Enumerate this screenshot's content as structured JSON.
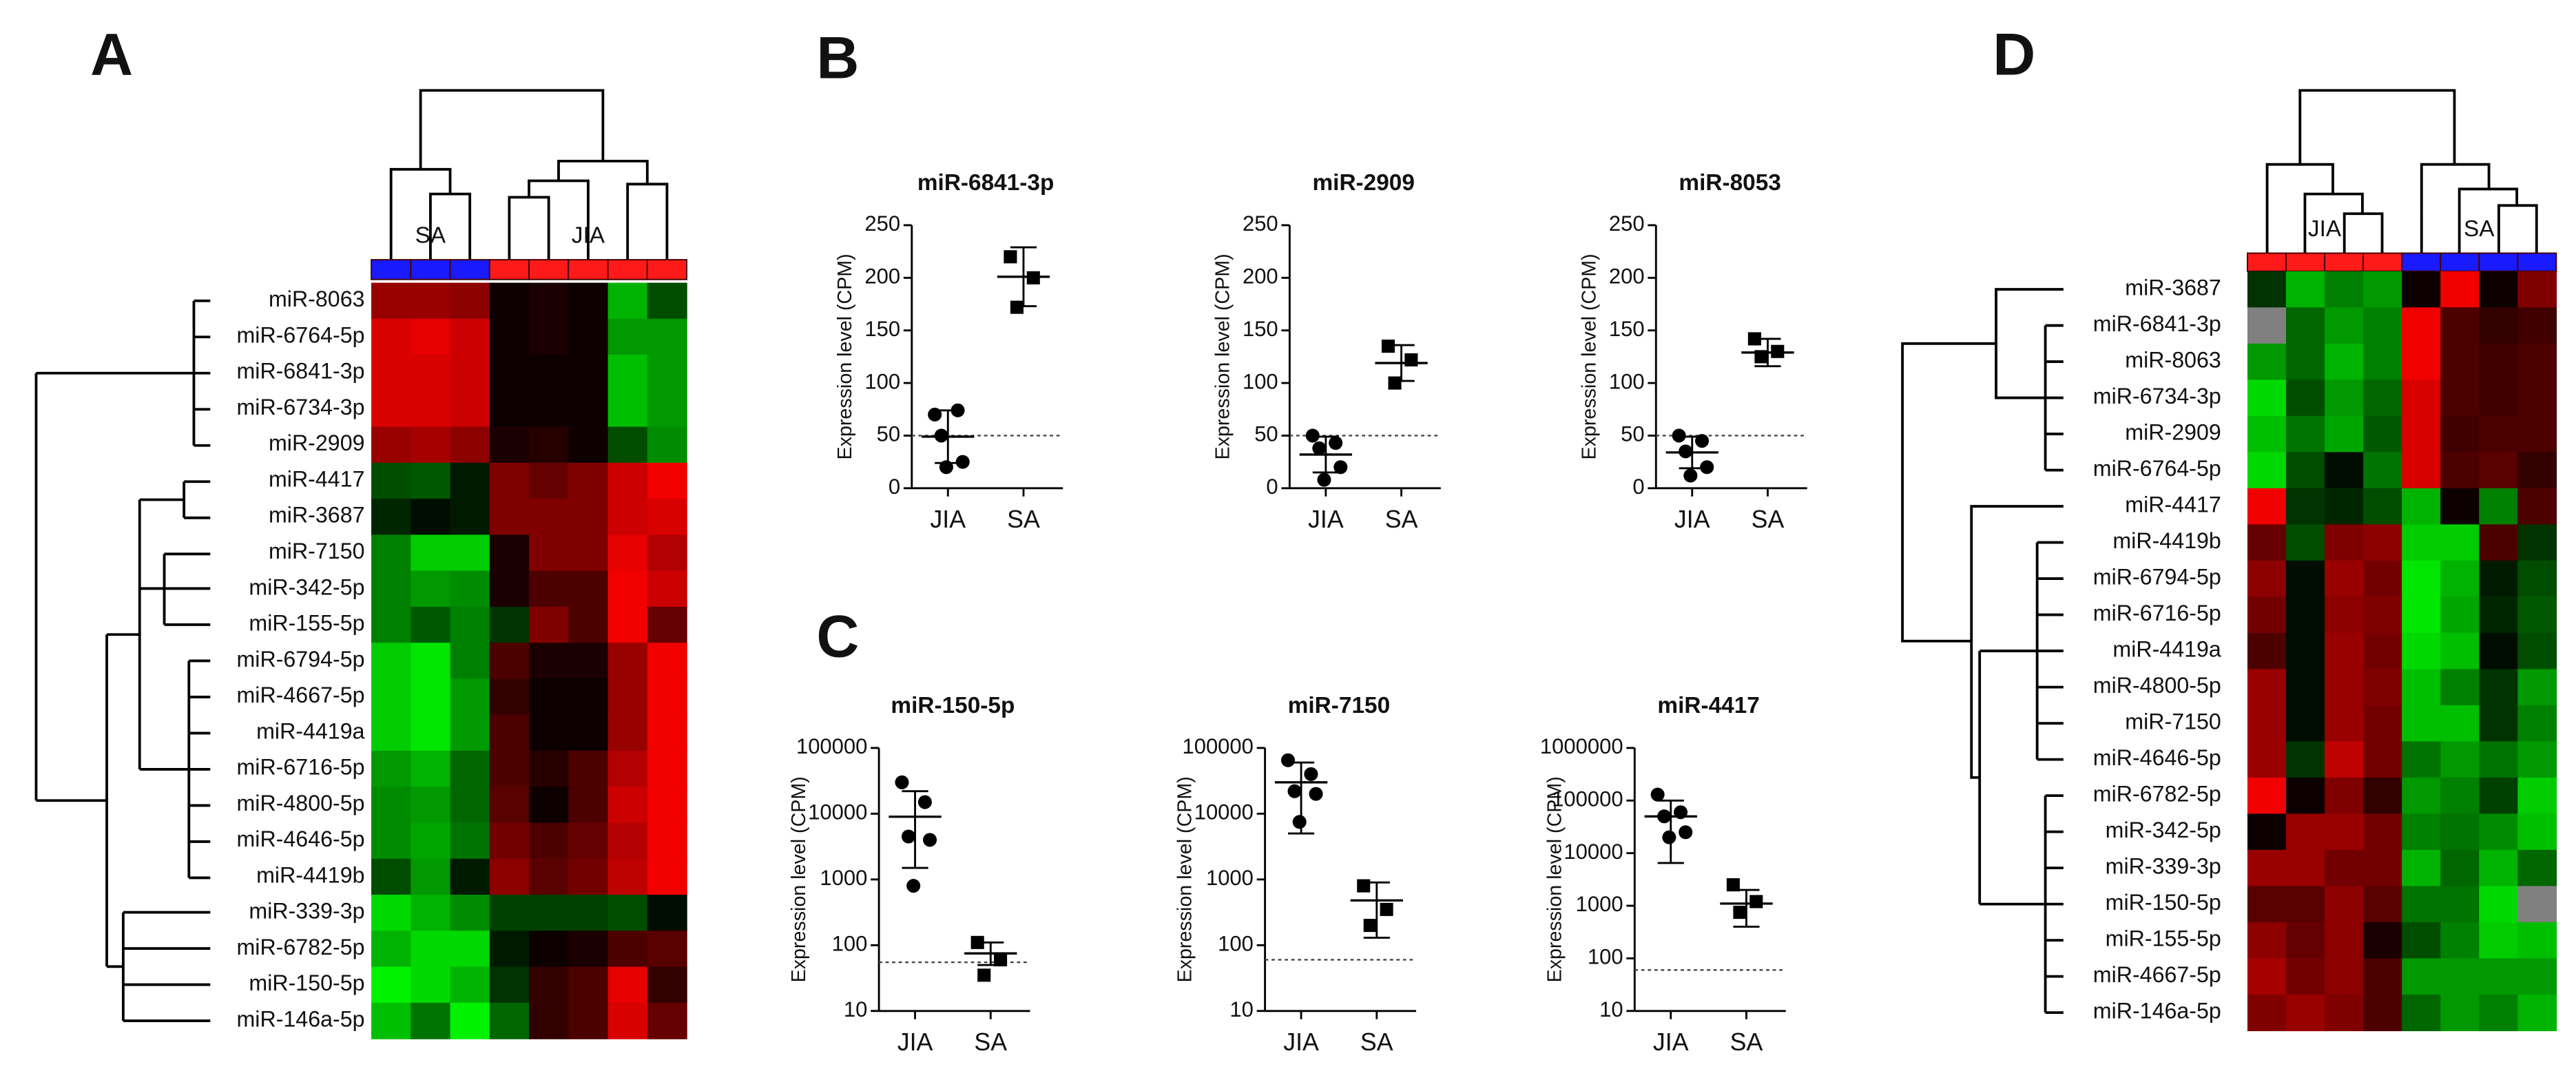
{
  "panel_labels": [
    "A",
    "B",
    "C",
    "D"
  ],
  "chart_data": [
    {
      "type": "heatmap",
      "rows": [
        "miR-8063",
        "miR-6764-5p",
        "miR-6841-3p",
        "miR-6734-3p",
        "miR-2909",
        "miR-4417",
        "miR-3687",
        "miR-7150",
        "miR-342-5p",
        "miR-155-5p",
        "miR-6794-5p",
        "miR-4667-5p",
        "miR-4419a",
        "miR-6716-5p",
        "miR-4800-5p",
        "miR-4646-5p",
        "miR-4419b",
        "miR-339-3p",
        "miR-6782-5p",
        "miR-150-5p",
        "miR-146a-5p"
      ],
      "groups": [
        {
          "name": "SA",
          "color": "#1a1aff",
          "columns": 3
        },
        {
          "name": "JIA",
          "color": "#ff1a1a",
          "columns": 5
        }
      ],
      "zlim": [
        -1,
        1
      ],
      "low_color": "#00ff00",
      "mid_color": "#000000",
      "high_color": "#ff0000",
      "missing_color": "#808080",
      "values": [
        [
          0.6,
          0.6,
          0.55,
          0.05,
          0.1,
          0.05,
          -0.7,
          -0.3
        ],
        [
          0.85,
          0.9,
          0.8,
          0.05,
          0.1,
          0.05,
          -0.6,
          -0.6
        ],
        [
          0.85,
          0.85,
          0.8,
          0.05,
          0.05,
          0.05,
          -0.75,
          -0.6
        ],
        [
          0.85,
          0.85,
          0.8,
          0.05,
          0.05,
          0.05,
          -0.75,
          -0.6
        ],
        [
          0.6,
          0.65,
          0.55,
          0.1,
          0.15,
          0.05,
          -0.3,
          -0.55
        ],
        [
          -0.3,
          -0.35,
          -0.1,
          0.5,
          0.4,
          0.5,
          0.8,
          0.95
        ],
        [
          -0.15,
          -0.05,
          -0.1,
          0.5,
          0.5,
          0.5,
          0.8,
          0.85
        ],
        [
          -0.5,
          -0.8,
          -0.8,
          0.1,
          0.5,
          0.5,
          0.9,
          0.7
        ],
        [
          -0.5,
          -0.6,
          -0.55,
          0.1,
          0.3,
          0.3,
          0.95,
          0.8
        ],
        [
          -0.5,
          -0.35,
          -0.5,
          -0.2,
          0.5,
          0.3,
          0.95,
          0.4
        ],
        [
          -0.8,
          -0.9,
          -0.5,
          0.3,
          0.1,
          0.1,
          0.6,
          0.95
        ],
        [
          -0.8,
          -0.9,
          -0.6,
          0.2,
          0.05,
          0.05,
          0.6,
          0.95
        ],
        [
          -0.8,
          -0.9,
          -0.6,
          0.3,
          0.05,
          0.05,
          0.6,
          0.95
        ],
        [
          -0.6,
          -0.7,
          -0.4,
          0.3,
          0.15,
          0.3,
          0.7,
          0.95
        ],
        [
          -0.55,
          -0.6,
          -0.4,
          0.35,
          0.05,
          0.3,
          0.8,
          0.95
        ],
        [
          -0.55,
          -0.65,
          -0.45,
          0.45,
          0.3,
          0.4,
          0.7,
          0.95
        ],
        [
          -0.3,
          -0.6,
          -0.1,
          0.55,
          0.35,
          0.45,
          0.75,
          0.95
        ],
        [
          -0.85,
          -0.7,
          -0.55,
          -0.25,
          -0.25,
          -0.25,
          -0.3,
          -0.05
        ],
        [
          -0.7,
          -0.85,
          -0.85,
          -0.1,
          0.05,
          0.1,
          0.3,
          0.35
        ],
        [
          -0.95,
          -0.85,
          -0.7,
          -0.2,
          0.2,
          0.3,
          0.9,
          0.2
        ],
        [
          -0.75,
          -0.45,
          -0.95,
          -0.4,
          0.2,
          0.3,
          0.85,
          0.4
        ]
      ]
    },
    {
      "type": "dot",
      "title": "miR-6841-3p",
      "ylabel": "Expression level (CPM)",
      "categories": [
        "JIA",
        "SA"
      ],
      "markers": [
        "circle",
        "square"
      ],
      "color": "#000000",
      "log": false,
      "ylim": [
        0,
        250
      ],
      "yticks": [
        0,
        50,
        100,
        150,
        200,
        250
      ],
      "threshold": 50,
      "values": [
        [
          70,
          74,
          50,
          25,
          20
        ],
        [
          220,
          200,
          172
        ]
      ],
      "mean": [
        49,
        201
      ],
      "error_bars": [
        [
          24,
          74
        ],
        [
          173,
          229
        ]
      ]
    },
    {
      "type": "dot",
      "title": "miR-2909",
      "ylabel": "Expression level (CPM)",
      "categories": [
        "JIA",
        "SA"
      ],
      "markers": [
        "circle",
        "square"
      ],
      "color": "#000000",
      "log": false,
      "ylim": [
        0,
        250
      ],
      "yticks": [
        0,
        50,
        100,
        150,
        200,
        250
      ],
      "threshold": 50,
      "values": [
        [
          50,
          43,
          38,
          20,
          8
        ],
        [
          135,
          122,
          100
        ]
      ],
      "mean": [
        32,
        119
      ],
      "error_bars": [
        [
          15,
          49
        ],
        [
          102,
          136
        ]
      ]
    },
    {
      "type": "dot",
      "title": "miR-8053",
      "ylabel": "Expression level (CPM)",
      "categories": [
        "JIA",
        "SA"
      ],
      "markers": [
        "circle",
        "square"
      ],
      "color": "#000000",
      "log": false,
      "ylim": [
        0,
        250
      ],
      "yticks": [
        0,
        50,
        100,
        150,
        200,
        250
      ],
      "threshold": 50,
      "values": [
        [
          50,
          45,
          35,
          20,
          12
        ],
        [
          142,
          130,
          125
        ]
      ],
      "mean": [
        34,
        129
      ],
      "error_bars": [
        [
          19,
          49
        ],
        [
          116,
          142
        ]
      ]
    },
    {
      "type": "dot",
      "title": "miR-150-5p",
      "ylabel": "Expression level (CPM)",
      "categories": [
        "JIA",
        "SA"
      ],
      "markers": [
        "circle",
        "square"
      ],
      "color": "#000000",
      "log": true,
      "ylim": [
        10,
        100000
      ],
      "yticks": [
        10,
        100,
        1000,
        10000,
        100000
      ],
      "threshold": 55,
      "values": [
        [
          30000,
          15000,
          4500,
          4000,
          800
        ],
        [
          110,
          60,
          35
        ]
      ],
      "mean": [
        9000,
        75
      ],
      "error_bars": [
        [
          1500,
          22000
        ],
        [
          50,
          110
        ]
      ]
    },
    {
      "type": "dot",
      "title": "miR-7150",
      "ylabel": "Expression level (CPM)",
      "categories": [
        "JIA",
        "SA"
      ],
      "markers": [
        "circle",
        "square"
      ],
      "color": "#000000",
      "log": true,
      "ylim": [
        10,
        100000
      ],
      "yticks": [
        10,
        100,
        1000,
        10000,
        100000
      ],
      "threshold": 60,
      "values": [
        [
          65000,
          40000,
          22000,
          20000,
          7500
        ],
        [
          800,
          350,
          200
        ]
      ],
      "mean": [
        30000,
        480
      ],
      "error_bars": [
        [
          5000,
          60000
        ],
        [
          130,
          900
        ]
      ]
    },
    {
      "type": "dot",
      "title": "miR-4417",
      "ylabel": "Expression level (CPM)",
      "categories": [
        "JIA",
        "SA"
      ],
      "markers": [
        "circle",
        "square"
      ],
      "color": "#000000",
      "log": true,
      "ylim": [
        10,
        1000000
      ],
      "yticks": [
        10,
        100,
        1000,
        10000,
        100000,
        1000000
      ],
      "threshold": 60,
      "values": [
        [
          130000,
          60000,
          50000,
          25000,
          20000
        ],
        [
          2500,
          1200,
          750
        ]
      ],
      "mean": [
        50000,
        1100
      ],
      "error_bars": [
        [
          6500,
          100000
        ],
        [
          400,
          2000
        ]
      ]
    },
    {
      "type": "heatmap",
      "rows": [
        "miR-3687",
        "miR-6841-3p",
        "miR-8063",
        "miR-6734-3p",
        "miR-2909",
        "miR-6764-5p",
        "miR-4417",
        "miR-4419b",
        "miR-6794-5p",
        "miR-6716-5p",
        "miR-4419a",
        "miR-4800-5p",
        "miR-7150",
        "miR-4646-5p",
        "miR-6782-5p",
        "miR-342-5p",
        "miR-339-3p",
        "miR-150-5p",
        "miR-155-5p",
        "miR-4667-5p",
        "miR-146a-5p"
      ],
      "groups": [
        {
          "name": "JIA",
          "color": "#ff1a1a",
          "columns": 4
        },
        {
          "name": "SA",
          "color": "#1a1aff",
          "columns": 4
        }
      ],
      "zlim": [
        -1,
        1
      ],
      "low_color": "#00ff00",
      "mid_color": "#000000",
      "high_color": "#ff0000",
      "missing_color": "#808080",
      "values": [
        [
          -0.2,
          -0.7,
          -0.5,
          -0.6,
          0.05,
          0.95,
          0.05,
          0.5
        ],
        [
          null,
          -0.4,
          -0.6,
          -0.5,
          0.95,
          0.3,
          0.2,
          0.25
        ],
        [
          -0.6,
          -0.4,
          -0.7,
          -0.5,
          0.95,
          0.3,
          0.25,
          0.3
        ],
        [
          -0.85,
          -0.3,
          -0.6,
          -0.4,
          0.85,
          0.3,
          0.25,
          0.3
        ],
        [
          -0.75,
          -0.45,
          -0.65,
          -0.35,
          0.85,
          0.25,
          0.3,
          0.3
        ],
        [
          -0.85,
          -0.3,
          -0.05,
          -0.45,
          0.85,
          0.3,
          0.35,
          0.2
        ],
        [
          0.95,
          -0.2,
          -0.15,
          -0.3,
          -0.7,
          0.05,
          -0.5,
          0.3
        ],
        [
          0.4,
          -0.3,
          0.5,
          0.55,
          -0.8,
          -0.8,
          0.3,
          -0.2
        ],
        [
          0.55,
          -0.05,
          0.6,
          0.45,
          -0.9,
          -0.7,
          -0.1,
          -0.3
        ],
        [
          0.45,
          -0.05,
          0.55,
          0.5,
          -0.9,
          -0.65,
          -0.15,
          -0.35
        ],
        [
          0.3,
          -0.05,
          0.6,
          0.45,
          -0.85,
          -0.75,
          -0.05,
          -0.3
        ],
        [
          0.6,
          -0.05,
          0.6,
          0.5,
          -0.75,
          -0.5,
          -0.2,
          -0.6
        ],
        [
          0.6,
          -0.05,
          0.6,
          0.45,
          -0.75,
          -0.75,
          -0.2,
          -0.5
        ],
        [
          0.6,
          -0.2,
          0.75,
          0.45,
          -0.45,
          -0.6,
          -0.45,
          -0.6
        ],
        [
          0.95,
          0.05,
          0.5,
          0.2,
          -0.6,
          -0.5,
          -0.25,
          -0.8
        ],
        [
          0.05,
          0.6,
          0.6,
          0.45,
          -0.5,
          -0.45,
          -0.55,
          -0.75
        ],
        [
          0.6,
          0.6,
          0.45,
          0.45,
          -0.7,
          -0.4,
          -0.7,
          -0.4
        ],
        [
          0.35,
          0.35,
          0.55,
          0.35,
          -0.45,
          -0.45,
          -0.85,
          null
        ],
        [
          0.55,
          0.4,
          0.55,
          0.1,
          -0.3,
          -0.5,
          -0.8,
          -0.75
        ],
        [
          0.65,
          0.45,
          0.55,
          0.3,
          -0.6,
          -0.6,
          -0.6,
          -0.6
        ],
        [
          0.5,
          0.6,
          0.5,
          0.3,
          -0.4,
          -0.6,
          -0.5,
          -0.7
        ]
      ]
    }
  ]
}
